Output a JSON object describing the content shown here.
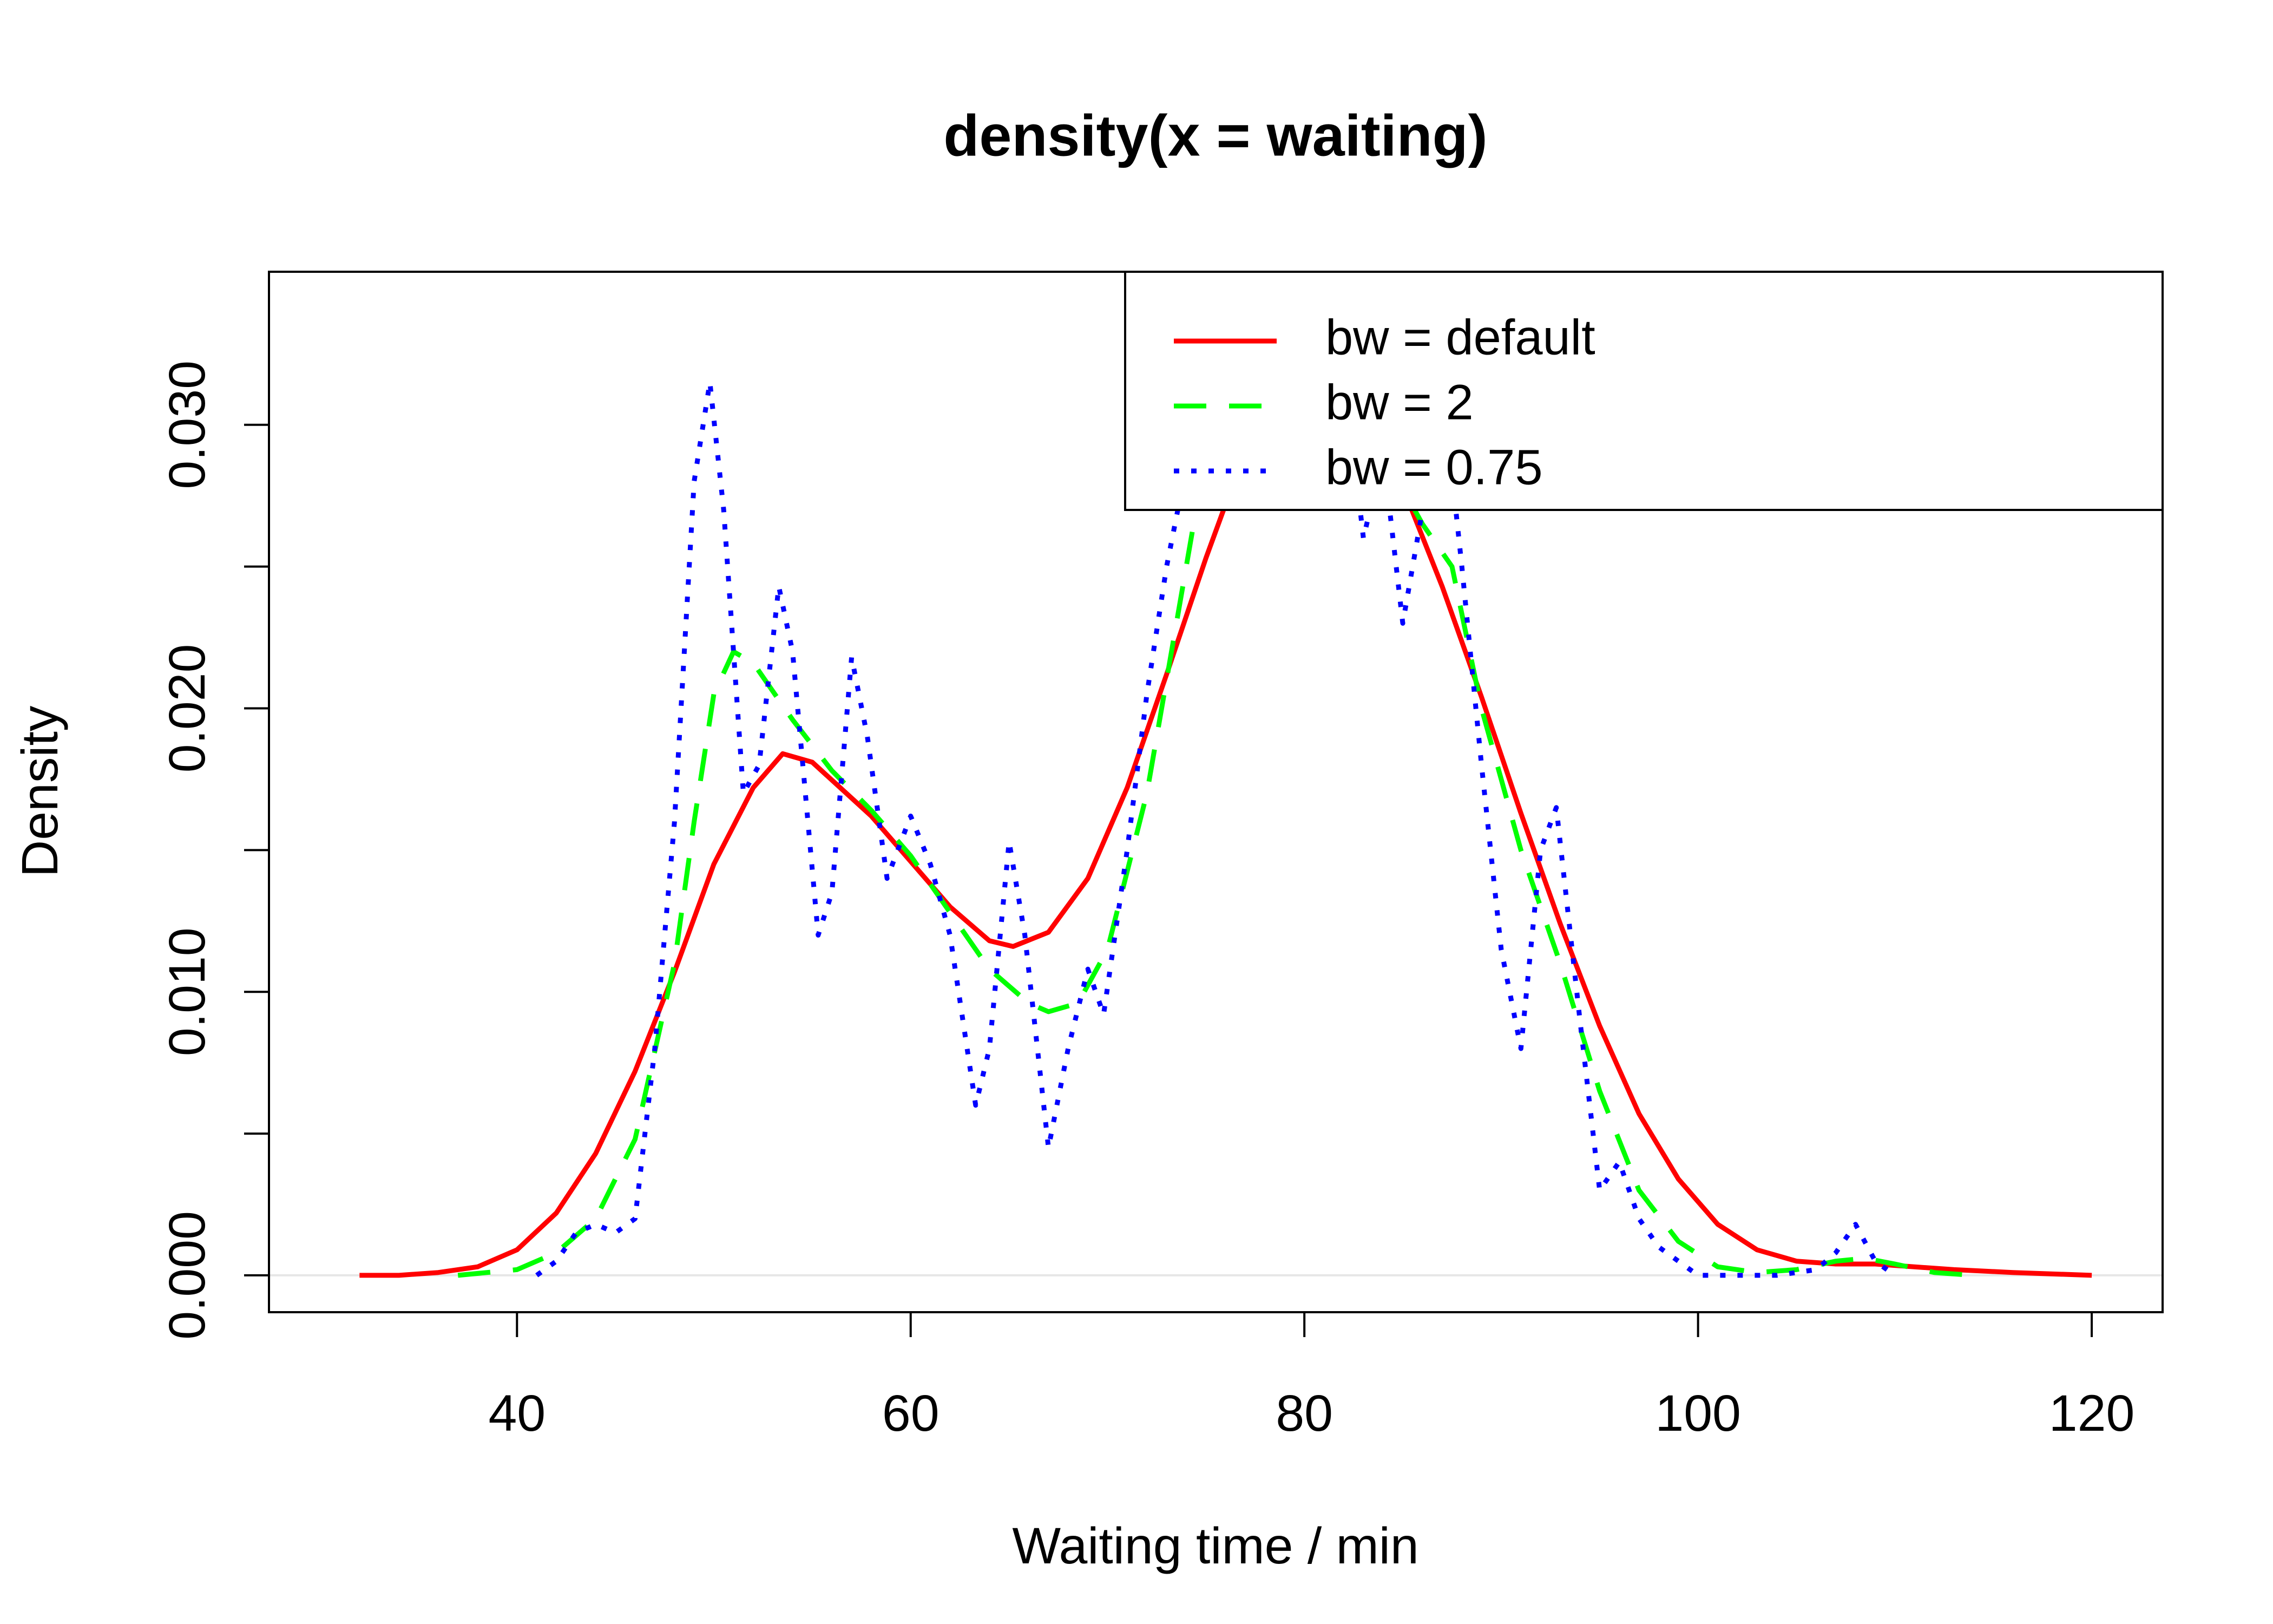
{
  "chart_data": {
    "type": "line",
    "title": "density(x = waiting)",
    "x_label": "Waiting time / min",
    "y_label": "Density",
    "xlim": [
      27.4,
      123.6
    ],
    "ylim": [
      -0.0013,
      0.0354
    ],
    "xticks": [
      40,
      60,
      80,
      100,
      120
    ],
    "yticks": [
      {
        "value": 0,
        "label": "0.000"
      },
      {
        "value": 0.005,
        "label": null
      },
      {
        "value": 0.01,
        "label": "0.010"
      },
      {
        "value": 0.015,
        "label": null
      },
      {
        "value": 0.02,
        "label": "0.020"
      },
      {
        "value": 0.025,
        "label": null
      },
      {
        "value": 0.03,
        "label": "0.030"
      }
    ],
    "legend": "topright",
    "series": [
      {
        "name": "bw = default",
        "color": "#ff0000",
        "dash": "solid",
        "x": [
          32,
          34,
          36,
          38,
          40,
          42,
          44,
          46,
          48,
          50,
          52,
          53.5,
          55,
          58,
          60,
          62,
          64,
          65.2,
          67,
          69,
          71,
          73,
          75,
          77,
          79.3,
          81,
          83,
          85,
          87,
          89,
          91,
          93,
          95,
          97,
          99,
          101,
          103,
          105,
          107,
          109,
          111,
          113,
          116,
          120
        ],
        "values": [
          0,
          0,
          0.0001,
          0.0003,
          0.0009,
          0.0022,
          0.0043,
          0.0072,
          0.0107,
          0.0145,
          0.0172,
          0.0184,
          0.0181,
          0.0162,
          0.0146,
          0.013,
          0.0118,
          0.0116,
          0.0121,
          0.014,
          0.0172,
          0.0212,
          0.0253,
          0.0291,
          0.034,
          0.0333,
          0.031,
          0.0278,
          0.0243,
          0.0204,
          0.0163,
          0.0124,
          0.0088,
          0.0057,
          0.0034,
          0.0018,
          0.0009,
          0.0005,
          0.0004,
          0.0004,
          0.0003,
          0.0002,
          0.0001,
          0
        ]
      },
      {
        "name": "bw = 2",
        "color": "#00ff00",
        "dash": "dashed",
        "x": [
          37,
          40,
          42,
          44,
          46,
          48,
          49,
          50,
          51,
          52,
          54,
          56,
          58,
          60,
          62,
          64,
          66,
          67,
          68.5,
          70,
          72,
          74,
          76,
          77,
          79,
          81,
          82,
          84,
          86,
          87.5,
          89,
          91,
          93,
          95,
          97,
          99,
          101,
          103,
          105,
          107,
          108.5,
          110,
          112,
          114
        ],
        "values": [
          0,
          0.0002,
          0.0008,
          0.002,
          0.0048,
          0.011,
          0.016,
          0.0205,
          0.022,
          0.0216,
          0.0196,
          0.0178,
          0.0164,
          0.0148,
          0.0128,
          0.0108,
          0.0096,
          0.0093,
          0.0096,
          0.0115,
          0.017,
          0.025,
          0.033,
          0.036,
          0.039,
          0.0365,
          0.033,
          0.029,
          0.0265,
          0.025,
          0.02,
          0.015,
          0.011,
          0.0065,
          0.003,
          0.0012,
          0.0003,
          0.0001,
          0.0002,
          0.0005,
          0.0006,
          0.0004,
          0.0001,
          0
        ]
      },
      {
        "name": "bw = 0.75",
        "color": "#0000ff",
        "dash": "dotted",
        "x": [
          41,
          42,
          43,
          44,
          45,
          46,
          47,
          48,
          49,
          49.8,
          50.5,
          51.5,
          52.3,
          53.3,
          54,
          55.3,
          56,
          57,
          57.8,
          58.8,
          60,
          61,
          62,
          63.3,
          64,
          65,
          65.8,
          67,
          68,
          69,
          69.8,
          71,
          72,
          73,
          74,
          75,
          76,
          77,
          79,
          81,
          82,
          83,
          84,
          85,
          86,
          87,
          88,
          89,
          90,
          91,
          92,
          92.8,
          94,
          95,
          96,
          97,
          98,
          100,
          104,
          106,
          107,
          108,
          109,
          110
        ],
        "values": [
          0,
          0.0005,
          0.0015,
          0.0018,
          0.0015,
          0.002,
          0.008,
          0.016,
          0.028,
          0.0315,
          0.027,
          0.017,
          0.018,
          0.0243,
          0.022,
          0.012,
          0.0135,
          0.0218,
          0.019,
          0.014,
          0.0162,
          0.0145,
          0.012,
          0.006,
          0.008,
          0.0153,
          0.012,
          0.0045,
          0.008,
          0.0108,
          0.0092,
          0.015,
          0.0205,
          0.025,
          0.0285,
          0.03,
          0.034,
          0.038,
          0.042,
          0.037,
          0.032,
          0.026,
          0.029,
          0.023,
          0.027,
          0.0315,
          0.025,
          0.018,
          0.0115,
          0.008,
          0.015,
          0.0165,
          0.009,
          0.003,
          0.004,
          0.002,
          0.001,
          0,
          0,
          0.0002,
          0.0008,
          0.0018,
          0.0005,
          0
        ]
      }
    ]
  }
}
